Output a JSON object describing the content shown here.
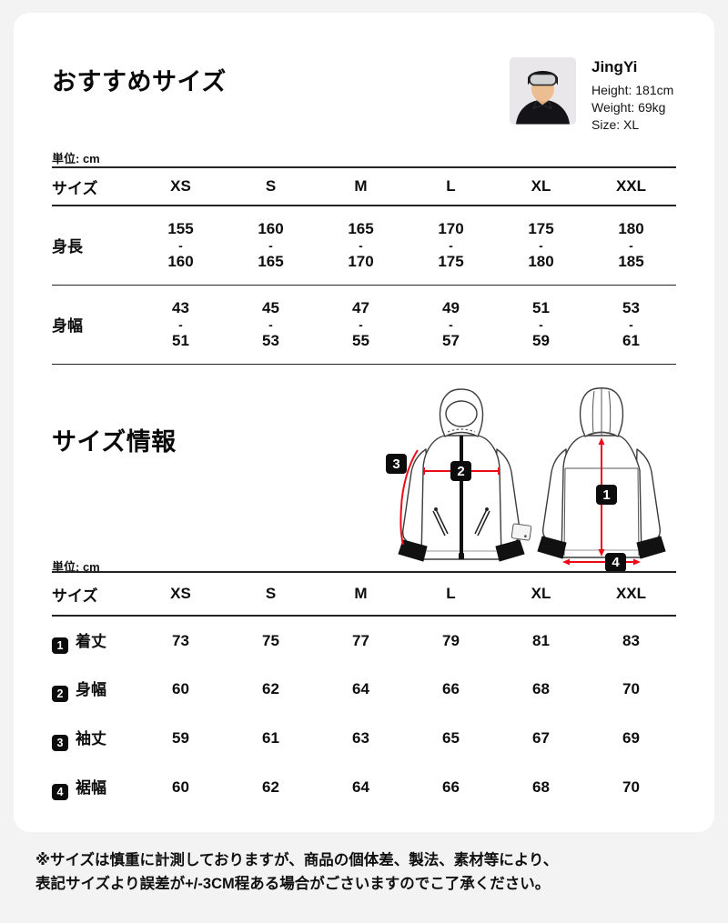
{
  "page": {
    "background": "#f3f3f4",
    "card_background": "#ffffff",
    "accent_red": "#ee0b18",
    "badge_black": "#0c0c0c"
  },
  "section_recommended": {
    "title": "おすすめサイズ",
    "unit_label": "単位: cm",
    "model": {
      "name": "JingYi",
      "height": "Height: 181cm",
      "weight": "Weight: 69kg",
      "size": "Size: XL"
    },
    "table": {
      "header": [
        "サイズ",
        "XS",
        "S",
        "M",
        "L",
        "XL",
        "XXL"
      ],
      "rows": [
        {
          "label": "身長",
          "ranges": [
            [
              "155",
              "160"
            ],
            [
              "160",
              "165"
            ],
            [
              "165",
              "170"
            ],
            [
              "170",
              "175"
            ],
            [
              "175",
              "180"
            ],
            [
              "180",
              "185"
            ]
          ]
        },
        {
          "label": "身幅",
          "ranges": [
            [
              "43",
              "51"
            ],
            [
              "45",
              "53"
            ],
            [
              "47",
              "55"
            ],
            [
              "49",
              "57"
            ],
            [
              "51",
              "59"
            ],
            [
              "53",
              "61"
            ]
          ]
        }
      ]
    }
  },
  "section_info": {
    "title": "サイズ情報",
    "unit_label": "単位: cm",
    "table": {
      "header": [
        "サイズ",
        "XS",
        "S",
        "M",
        "L",
        "XL",
        "XXL"
      ],
      "rows": [
        {
          "num": "1",
          "label": "着丈",
          "values": [
            "73",
            "75",
            "77",
            "79",
            "81",
            "83"
          ]
        },
        {
          "num": "2",
          "label": "身幅",
          "values": [
            "60",
            "62",
            "64",
            "66",
            "68",
            "70"
          ]
        },
        {
          "num": "3",
          "label": "袖丈",
          "values": [
            "59",
            "61",
            "63",
            "65",
            "67",
            "69"
          ]
        },
        {
          "num": "4",
          "label": "裾幅",
          "values": [
            "60",
            "62",
            "64",
            "66",
            "68",
            "70"
          ]
        }
      ]
    }
  },
  "footnote": {
    "line1": "※サイズは慎重に計測しておりますが、商品の個体差、製法、素材等により、",
    "line2": "表記サイズより誤差が+/-3CM程ある場合がごさいますのでこ了承ください。"
  }
}
